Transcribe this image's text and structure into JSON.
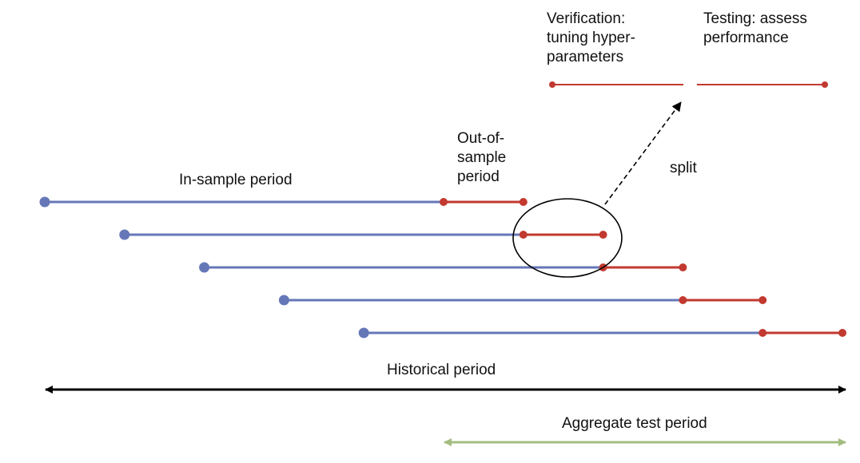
{
  "labels": {
    "verification": "Verification:\ntuning hyper-\nparameters",
    "testing": "Testing: assess\nperformance",
    "out_of_sample": "Out-of-\nsample\nperiod",
    "in_sample": "In-sample period",
    "split": "split",
    "historical": "Historical period",
    "aggregate": "Aggregate test period"
  },
  "colors": {
    "in_sample": "#6677b8",
    "out_of_sample": "#c2392f",
    "historical": "#000000",
    "aggregate": "#a3bd80",
    "annotation": "#000000"
  },
  "windows": [
    {
      "in_sample_start": 0,
      "in_sample_end": 5,
      "out_of_sample_end": 6
    },
    {
      "in_sample_start": 1,
      "in_sample_end": 6,
      "out_of_sample_end": 7
    },
    {
      "in_sample_start": 2,
      "in_sample_end": 7,
      "out_of_sample_end": 8
    },
    {
      "in_sample_start": 3,
      "in_sample_end": 8,
      "out_of_sample_end": 9
    },
    {
      "in_sample_start": 4,
      "in_sample_end": 9,
      "out_of_sample_end": 10
    }
  ]
}
